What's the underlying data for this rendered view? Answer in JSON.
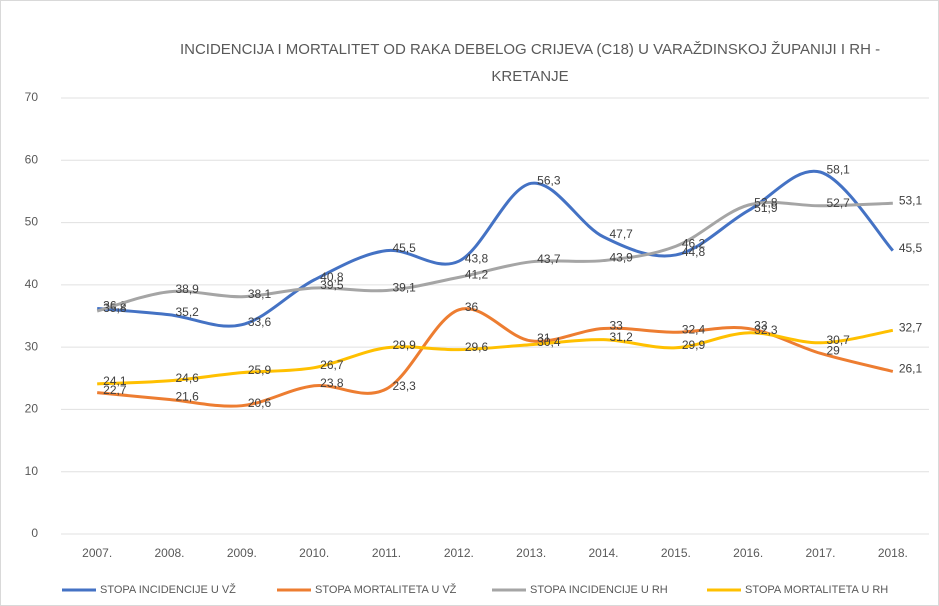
{
  "chart_data": {
    "type": "line",
    "title": "INCIDENCIJA I MORTALITET OD RAKA DEBELOG CRIJEVA (C18) U VARAŽDINSKOJ ŽUPANIJI I RH - KRETANJE",
    "categories": [
      "2007.",
      "2008.",
      "2009.",
      "2010.",
      "2011.",
      "2012.",
      "2013.",
      "2014.",
      "2015.",
      "2016.",
      "2017.",
      "2018."
    ],
    "ylim": [
      0,
      70
    ],
    "yticks": [
      0,
      10,
      20,
      30,
      40,
      50,
      60,
      70
    ],
    "grid": true,
    "legend": "bottom",
    "smooth": true,
    "series": [
      {
        "name": "STOPA INCIDENCIJE U VŽ",
        "color": "#4472c4",
        "values": [
          36.2,
          35.2,
          33.6,
          40.8,
          45.5,
          43.8,
          56.3,
          47.7,
          44.8,
          51.9,
          58.1,
          45.5
        ],
        "value_labels": [
          "36,2",
          "35,2",
          "33,6",
          "40,8",
          "45,5",
          "43,8",
          "56,3",
          "47,7",
          "44,8",
          "51,9",
          "58,1",
          "45,5"
        ]
      },
      {
        "name": "STOPA MORTALITETA U VŽ",
        "color": "#ed7d31",
        "values": [
          22.7,
          21.6,
          20.6,
          23.8,
          23.3,
          36,
          31,
          33,
          32.4,
          33,
          29,
          26.1
        ],
        "value_labels": [
          "22,7",
          "21,6",
          "20,6",
          "23,8",
          "23,3",
          "36",
          "31",
          "33",
          "32,4",
          "33",
          "29",
          "26,1"
        ]
      },
      {
        "name": "STOPA INCIDENCIJE U RH",
        "color": "#a5a5a5",
        "values": [
          35.8,
          38.9,
          38.1,
          39.5,
          39.1,
          41.2,
          43.7,
          43.9,
          46.2,
          52.8,
          52.7,
          53.1
        ],
        "value_labels": [
          "35,8",
          "38,9",
          "38,1",
          "39,5",
          "39,1",
          "41,2",
          "43,7",
          "43,9",
          "46,2",
          "52,8",
          "52,7",
          "53,1"
        ]
      },
      {
        "name": "STOPA MORTALITETA U RH",
        "color": "#ffc000",
        "values": [
          24.1,
          24.6,
          25.9,
          26.7,
          29.9,
          29.6,
          30.4,
          31.2,
          29.9,
          32.3,
          30.7,
          32.7
        ],
        "value_labels": [
          "24,1",
          "24,6",
          "25,9",
          "26,7",
          "29,9",
          "29,6",
          "30,4",
          "31,2",
          "29,9",
          "32,3",
          "30,7",
          "32,7"
        ]
      }
    ]
  }
}
